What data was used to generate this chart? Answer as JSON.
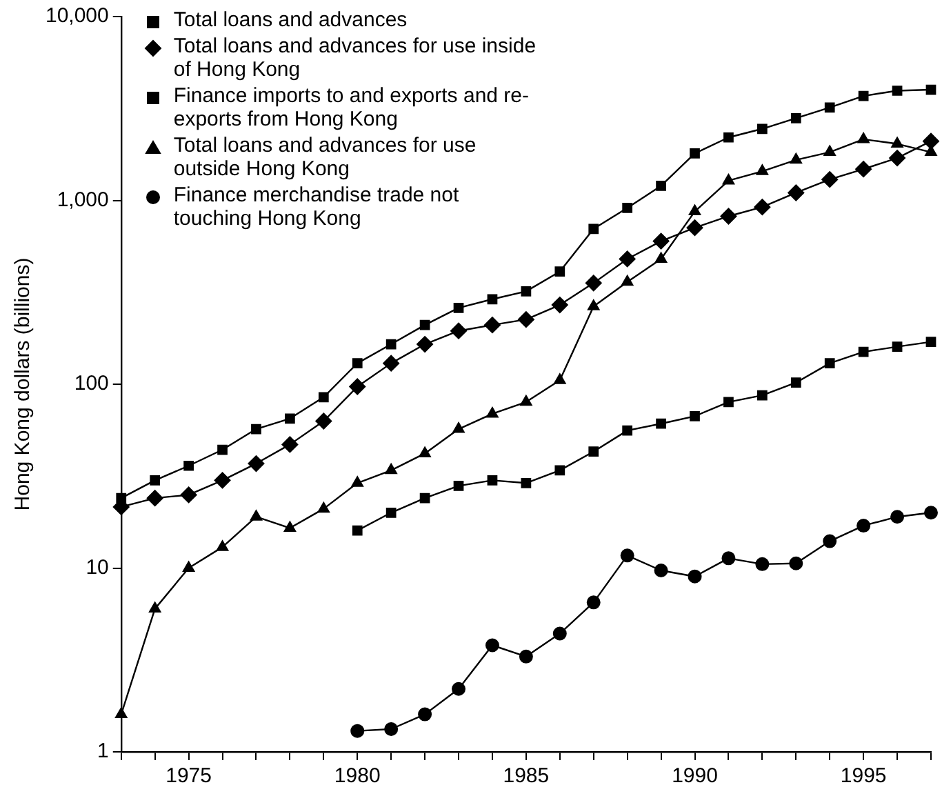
{
  "chart_data": {
    "type": "line",
    "ylabel": "Hong Kong dollars (billions)",
    "log": "y",
    "grid": false,
    "legend": "top left",
    "line_style": "solid",
    "xlim": [
      1973,
      1997
    ],
    "xticks": [
      {
        "value": 1973,
        "label": null
      },
      {
        "value": 1974,
        "label": null
      },
      1975,
      {
        "value": 1976,
        "label": null
      },
      {
        "value": 1977,
        "label": null
      },
      {
        "value": 1978,
        "label": null
      },
      {
        "value": 1979,
        "label": null
      },
      1980,
      {
        "value": 1981,
        "label": null
      },
      {
        "value": 1982,
        "label": null
      },
      {
        "value": 1983,
        "label": null
      },
      {
        "value": 1984,
        "label": null
      },
      1985,
      {
        "value": 1986,
        "label": null
      },
      {
        "value": 1987,
        "label": null
      },
      {
        "value": 1988,
        "label": null
      },
      {
        "value": 1989,
        "label": null
      },
      1990,
      {
        "value": 1991,
        "label": null
      },
      {
        "value": 1992,
        "label": null
      },
      {
        "value": 1993,
        "label": null
      },
      {
        "value": 1994,
        "label": null
      },
      1995,
      {
        "value": 1996,
        "label": null
      },
      {
        "value": 1997,
        "label": null
      }
    ],
    "ylim": [
      1,
      10000
    ],
    "yticks": [
      1,
      10,
      100,
      {
        "value": 1000,
        "label": "1,000"
      },
      {
        "value": 10000,
        "label": "10,000"
      }
    ],
    "series": [
      {
        "name": "Total loans and advances",
        "color": "#000000",
        "marker": "square",
        "x": [
          1973,
          1974,
          1975,
          1976,
          1977,
          1978,
          1979,
          1980,
          1981,
          1982,
          1983,
          1984,
          1985,
          1986,
          1987,
          1988,
          1989,
          1990,
          1991,
          1992,
          1993,
          1994,
          1995,
          1996,
          1997
        ],
        "values": [
          24,
          30,
          36,
          44,
          57,
          65,
          85,
          130,
          165,
          210,
          260,
          290,
          320,
          410,
          700,
          910,
          1200,
          1800,
          2200,
          2450,
          2800,
          3200,
          3700,
          3950,
          4000
        ]
      },
      {
        "name": "Total loans and advances for use inside of Hong Kong",
        "color": "#000000",
        "marker": "diamond",
        "x": [
          1973,
          1974,
          1975,
          1976,
          1977,
          1978,
          1979,
          1980,
          1981,
          1982,
          1983,
          1984,
          1985,
          1986,
          1987,
          1988,
          1989,
          1990,
          1991,
          1992,
          1993,
          1994,
          1995,
          1996,
          1997
        ],
        "values": [
          21.5,
          24,
          25,
          30,
          37,
          47,
          63,
          97,
          130,
          165,
          195,
          210,
          225,
          270,
          355,
          480,
          600,
          710,
          820,
          920,
          1100,
          1300,
          1480,
          1700,
          2100
        ]
      },
      {
        "name": "Finance imports to and exports and re-exports from Hong Kong",
        "color": "#000000",
        "marker": "square",
        "x": [
          1980,
          1981,
          1982,
          1983,
          1984,
          1985,
          1986,
          1987,
          1988,
          1989,
          1990,
          1991,
          1992,
          1993,
          1994,
          1995,
          1996,
          1997
        ],
        "values": [
          16,
          20,
          24,
          28,
          30,
          29,
          34,
          43,
          56,
          61,
          67,
          80,
          87,
          102,
          130,
          150,
          160,
          170
        ]
      },
      {
        "name": "Total loans and advances for use outside Hong Kong",
        "color": "#000000",
        "marker": "triangle",
        "x": [
          1973,
          1974,
          1975,
          1976,
          1977,
          1978,
          1979,
          1980,
          1981,
          1982,
          1983,
          1984,
          1985,
          1986,
          1987,
          1988,
          1989,
          1990,
          1991,
          1992,
          1993,
          1994,
          1995,
          1996,
          1997
        ],
        "values": [
          1.6,
          6,
          10,
          13,
          19,
          16.5,
          21,
          29,
          34,
          42,
          57,
          69,
          80,
          105,
          265,
          360,
          480,
          870,
          1280,
          1440,
          1660,
          1830,
          2150,
          2030,
          1830
        ]
      },
      {
        "name": "Finance merchandise trade not touching Hong Kong",
        "color": "#000000",
        "marker": "circle",
        "x": [
          1980,
          1981,
          1982,
          1983,
          1984,
          1985,
          1986,
          1987,
          1988,
          1989,
          1990,
          1991,
          1992,
          1993,
          1994,
          1995,
          1996,
          1997
        ],
        "values": [
          1.3,
          1.33,
          1.6,
          2.2,
          3.8,
          3.3,
          4.4,
          6.5,
          11.7,
          9.7,
          9,
          11.3,
          10.5,
          10.6,
          14,
          17,
          19,
          20
        ]
      }
    ]
  }
}
